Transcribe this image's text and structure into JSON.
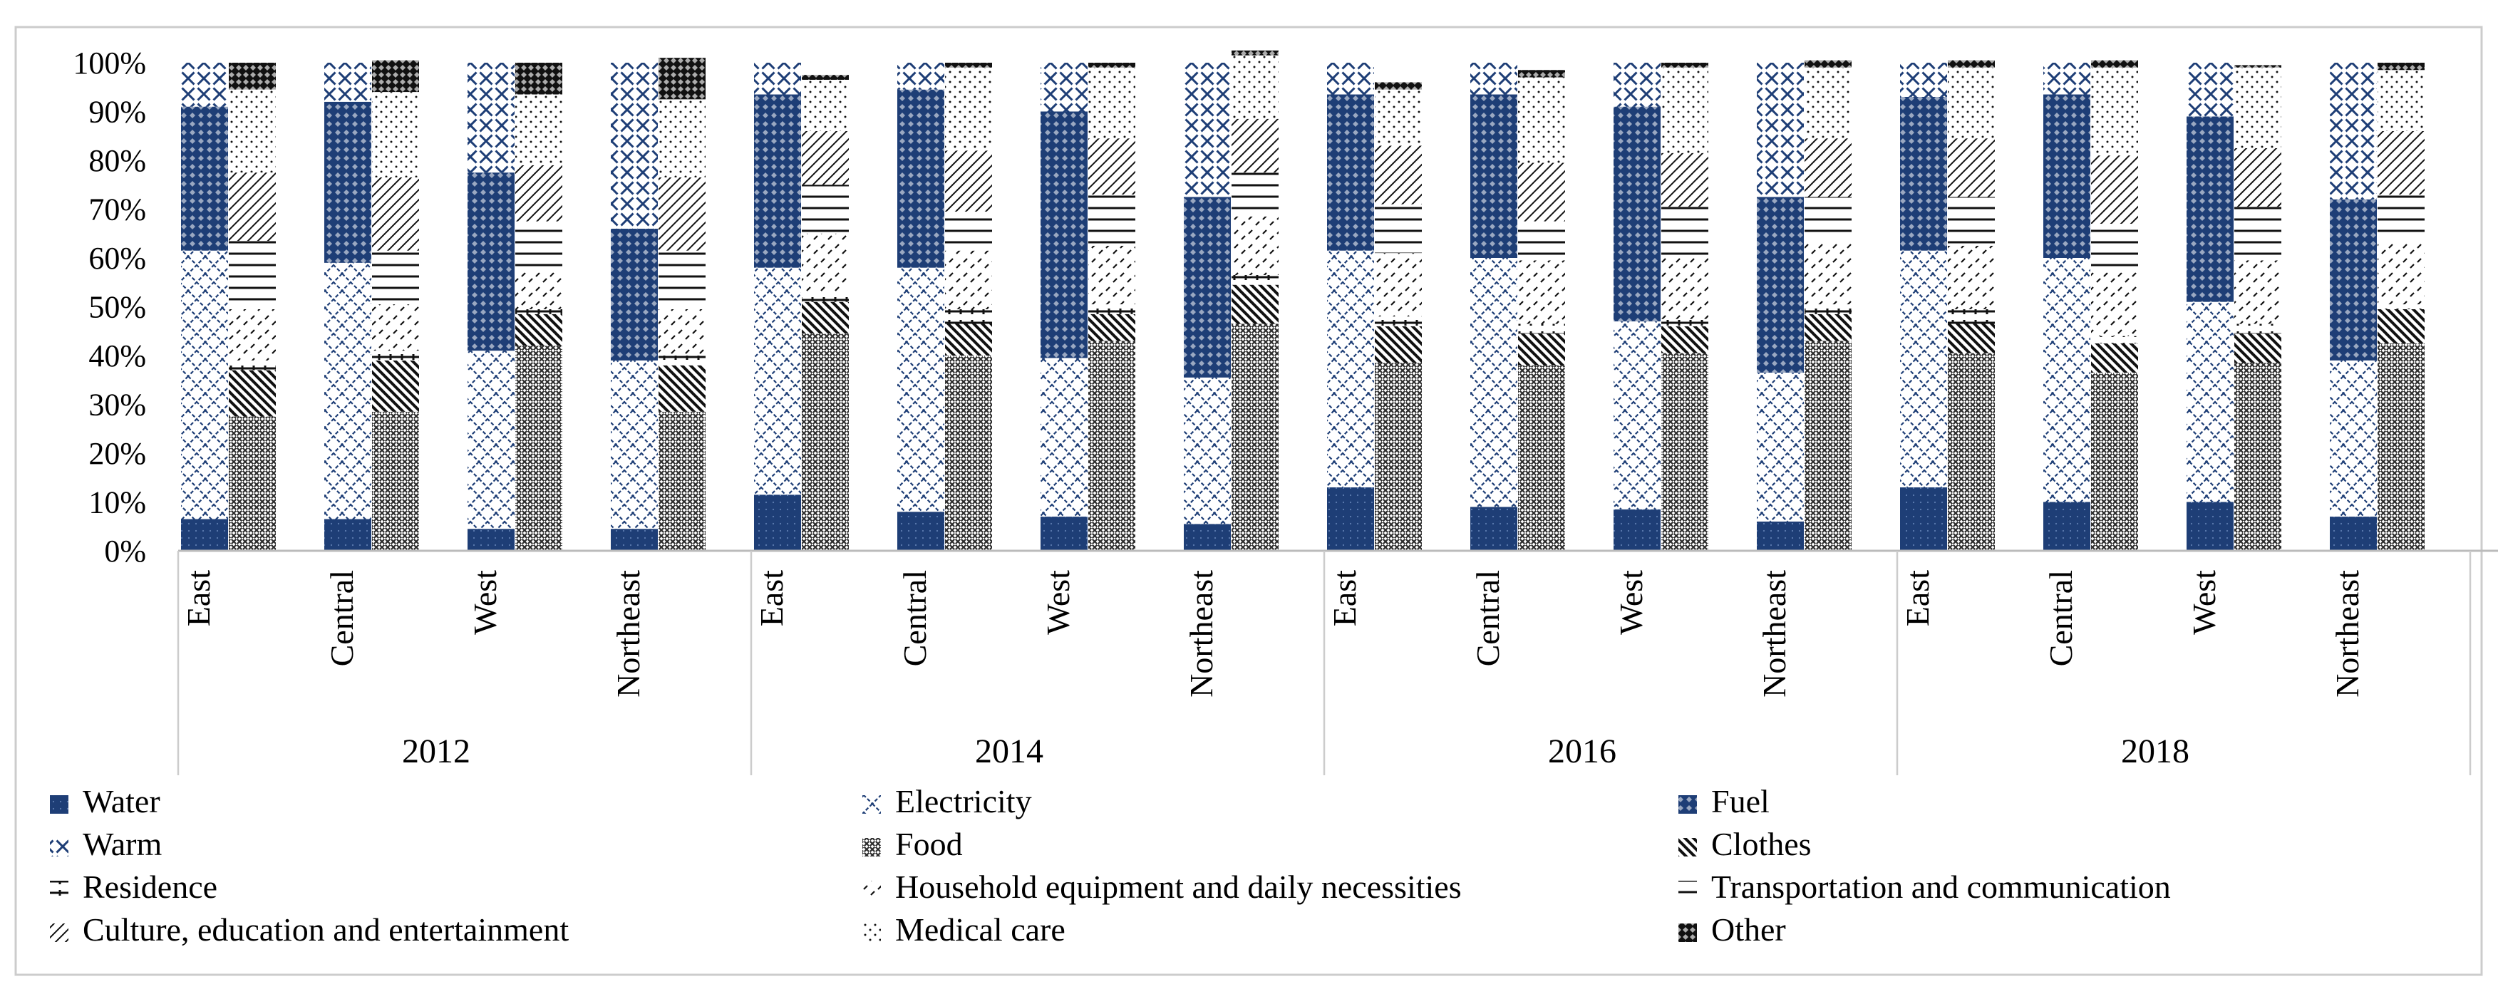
{
  "chart_data": {
    "type": "bar",
    "stacked": true,
    "percent_scale": true,
    "groups": [
      {
        "label": "2012",
        "regions": [
          "East",
          "Central",
          "West",
          "Northeast"
        ]
      },
      {
        "label": "2014",
        "regions": [
          "East",
          "Central",
          "West",
          "Northeast"
        ]
      },
      {
        "label": "2016",
        "regions": [
          "East",
          "Central",
          "West",
          "Northeast"
        ]
      },
      {
        "label": "2018",
        "regions": [
          "East",
          "Central",
          "West",
          "Northeast"
        ]
      }
    ],
    "y_ticks": [
      "0%",
      "10%",
      "20%",
      "30%",
      "40%",
      "50%",
      "60%",
      "70%",
      "80%",
      "90%",
      "100%"
    ],
    "ylim": [
      0,
      100
    ],
    "legend_position": "bottom",
    "energy_series": [
      {
        "name": "Water",
        "pattern": "water",
        "values": [
          [
            6.5,
            6.5,
            4.5,
            4.5
          ],
          [
            11.5,
            8,
            7,
            5.5
          ],
          [
            13,
            9,
            8.5,
            6
          ],
          [
            13,
            10,
            10,
            7
          ]
        ]
      },
      {
        "name": "Electricity",
        "pattern": "electricity",
        "values": [
          [
            55,
            52.5,
            36.5,
            34.5
          ],
          [
            46.5,
            50,
            32.5,
            30
          ],
          [
            48.5,
            51,
            38.5,
            30.5
          ],
          [
            48.5,
            50,
            41,
            32
          ]
        ]
      },
      {
        "name": "Fuel",
        "pattern": "fuel",
        "values": [
          [
            29.5,
            33,
            36.5,
            27
          ],
          [
            35.5,
            36.5,
            50.5,
            37
          ],
          [
            32,
            33.5,
            44,
            36
          ],
          [
            31.5,
            33.5,
            38,
            33
          ]
        ]
      },
      {
        "name": "Warm",
        "pattern": "warm",
        "values": [
          [
            9,
            8,
            22.5,
            34
          ],
          [
            6.5,
            5.5,
            10,
            27.5
          ],
          [
            6.5,
            6.5,
            9,
            27.5
          ],
          [
            7,
            6.5,
            11,
            28
          ]
        ]
      }
    ],
    "consumption_series": [
      {
        "name": "Food",
        "pattern": "food",
        "values": [
          [
            27.5,
            28.5,
            42,
            28.5
          ],
          [
            44.5,
            40,
            43,
            46.5
          ],
          [
            38.5,
            38,
            40.5,
            43
          ],
          [
            40.5,
            36.5,
            38.5,
            42.5
          ]
        ]
      },
      {
        "name": "Clothes",
        "pattern": "clothes",
        "values": [
          [
            9.5,
            10.5,
            6.5,
            9.5
          ],
          [
            6.5,
            6.5,
            5.5,
            8
          ],
          [
            7.5,
            6.5,
            5.5,
            5.5
          ],
          [
            6,
            6,
            6,
            7
          ]
        ]
      },
      {
        "name": "Residence",
        "pattern": "residence",
        "values": [
          [
            2,
            2,
            1,
            2
          ],
          [
            2,
            3,
            2,
            2
          ],
          [
            2,
            2,
            1.5,
            2
          ],
          [
            3,
            1.5,
            2,
            1
          ]
        ]
      },
      {
        "name": "Household equipment and daily necessities",
        "pattern": "household",
        "values": [
          [
            10.5,
            9.5,
            7.5,
            9.5
          ],
          [
            12,
            12,
            12,
            12
          ],
          [
            13,
            13,
            13,
            13
          ],
          [
            13,
            13,
            13,
            13
          ]
        ]
      },
      {
        "name": "Transportation and communication",
        "pattern": "transport",
        "values": [
          [
            14,
            11,
            10.5,
            12
          ],
          [
            10,
            8,
            10.5,
            9
          ],
          [
            10,
            8,
            10,
            9
          ],
          [
            10,
            10,
            11,
            9.5
          ]
        ]
      },
      {
        "name": "Culture, education and entertainment",
        "pattern": "culture",
        "values": [
          [
            14,
            15,
            11.5,
            15
          ],
          [
            11,
            12.5,
            11.5,
            11
          ],
          [
            12,
            12,
            11,
            12
          ],
          [
            12,
            14,
            12,
            13
          ]
        ]
      },
      {
        "name": "Medical care",
        "pattern": "medical",
        "values": [
          [
            17,
            17.5,
            14.5,
            16
          ],
          [
            10.5,
            17,
            14.5,
            13
          ],
          [
            11.5,
            17.5,
            17.5,
            14.5
          ],
          [
            14.5,
            18,
            16.5,
            12.5
          ]
        ]
      },
      {
        "name": "Other",
        "pattern": "other",
        "values": [
          [
            5.5,
            6.5,
            6.5,
            8.5
          ],
          [
            1,
            1,
            1,
            1
          ],
          [
            1.5,
            1.5,
            1,
            1.5
          ],
          [
            1.5,
            1.5,
            0.5,
            1.5
          ]
        ]
      }
    ],
    "legend": [
      "Water",
      "Electricity",
      "Fuel",
      "Warm",
      "Food",
      "Clothes",
      "Residence",
      "Household equipment and daily necessities",
      "Transportation and communication",
      "Culture, education and entertainment",
      "Medical care",
      "Other"
    ]
  }
}
